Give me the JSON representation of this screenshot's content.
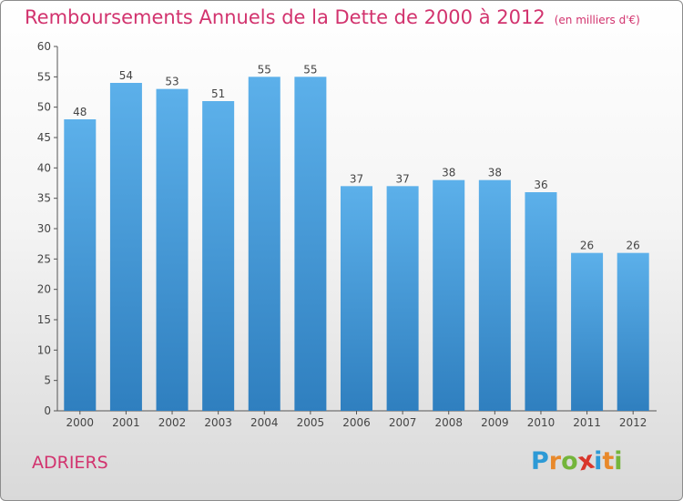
{
  "chart_data": {
    "type": "bar",
    "title": "Remboursements Annuels de la Dette de 2000 à 2012",
    "subtitle": "(en milliers d'€)",
    "categories": [
      "2000",
      "2001",
      "2002",
      "2003",
      "2004",
      "2005",
      "2006",
      "2007",
      "2008",
      "2009",
      "2010",
      "2011",
      "2012"
    ],
    "values": [
      48,
      54,
      53,
      51,
      55,
      55,
      37,
      37,
      38,
      38,
      36,
      26,
      26
    ],
    "ylim": [
      0,
      60
    ],
    "yticks": [
      0,
      5,
      10,
      15,
      20,
      25,
      30,
      35,
      40,
      45,
      50,
      55,
      60
    ],
    "grid": false,
    "colors": {
      "bar_top": "#5cb0ea",
      "bar_bottom": "#2f7fbf",
      "title": "#d2336e"
    }
  },
  "commune": "ADRIERS",
  "logo": {
    "letters": [
      "P",
      "r",
      "o",
      "x",
      "i",
      "t",
      "i"
    ],
    "colors": [
      "#2d9ad6",
      "#e8892b",
      "#74b53b",
      "#d9362b",
      "#2d9ad6",
      "#e8892b",
      "#74b53b"
    ]
  }
}
